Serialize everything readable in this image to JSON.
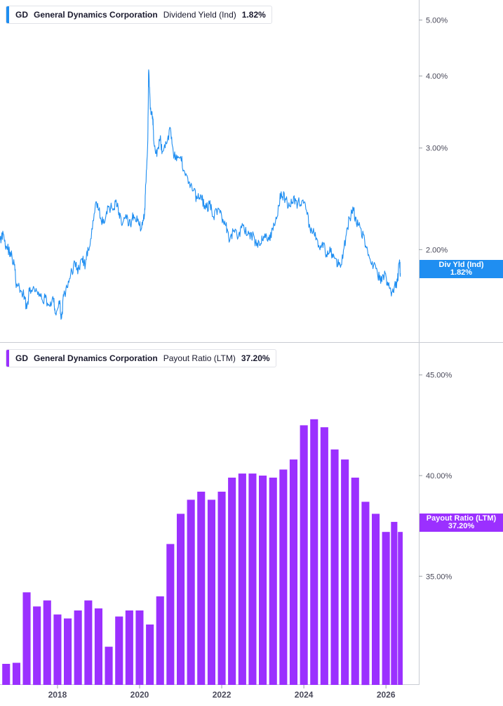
{
  "legends": [
    {
      "ticker": "GD",
      "company": "General Dynamics Corporation",
      "metric": "Dividend Yield (Ind)",
      "value": "1.82%",
      "color": "#1f8ef1"
    },
    {
      "ticker": "GD",
      "company": "General Dynamics Corporation",
      "metric": "Payout Ratio (LTM)",
      "value": "37.20%",
      "color": "#9b30ff"
    }
  ],
  "tags": {
    "yield": {
      "label": "Div Yld (Ind)",
      "value": "1.82%",
      "color": "#1f8ef1"
    },
    "payout": {
      "label": "Payout Ratio (LTM)",
      "value": "37.20%",
      "color": "#9b30ff"
    }
  },
  "chart_data": [
    {
      "type": "line",
      "title": "GD General Dynamics Corporation Dividend Yield (Ind) 1.82%",
      "series_name": "Dividend Yield (Ind)",
      "scale": "log",
      "yticks": [
        2.0,
        3.0,
        4.0,
        5.0
      ],
      "ytick_labels": [
        "2.00%",
        "3.00%",
        "4.00%",
        "5.00%"
      ],
      "ylim": [
        1.45,
        5.15
      ],
      "xlim": [
        2016.6,
        2026.8
      ],
      "color": "#1f8ef1",
      "points": [
        [
          2016.6,
          2.08
        ],
        [
          2016.68,
          2.13
        ],
        [
          2016.75,
          2.03
        ],
        [
          2016.85,
          1.98
        ],
        [
          2016.95,
          1.88
        ],
        [
          2017.0,
          1.73
        ],
        [
          2017.1,
          1.7
        ],
        [
          2017.2,
          1.66
        ],
        [
          2017.25,
          1.58
        ],
        [
          2017.33,
          1.72
        ],
        [
          2017.45,
          1.69
        ],
        [
          2017.55,
          1.66
        ],
        [
          2017.62,
          1.64
        ],
        [
          2017.7,
          1.65
        ],
        [
          2017.8,
          1.6
        ],
        [
          2017.9,
          1.64
        ],
        [
          2017.95,
          1.55
        ],
        [
          2018.05,
          1.61
        ],
        [
          2018.1,
          1.52
        ],
        [
          2018.15,
          1.66
        ],
        [
          2018.25,
          1.72
        ],
        [
          2018.35,
          1.84
        ],
        [
          2018.45,
          1.9
        ],
        [
          2018.5,
          1.83
        ],
        [
          2018.6,
          1.93
        ],
        [
          2018.68,
          1.88
        ],
        [
          2018.75,
          2.0
        ],
        [
          2018.85,
          2.17
        ],
        [
          2018.95,
          2.42
        ],
        [
          2019.05,
          2.27
        ],
        [
          2019.15,
          2.23
        ],
        [
          2019.25,
          2.38
        ],
        [
          2019.35,
          2.34
        ],
        [
          2019.42,
          2.44
        ],
        [
          2019.5,
          2.32
        ],
        [
          2019.58,
          2.21
        ],
        [
          2019.68,
          2.26
        ],
        [
          2019.78,
          2.2
        ],
        [
          2019.85,
          2.3
        ],
        [
          2019.95,
          2.24
        ],
        [
          2020.05,
          2.18
        ],
        [
          2020.12,
          2.3
        ],
        [
          2020.15,
          2.6
        ],
        [
          2020.2,
          3.1
        ],
        [
          2020.22,
          4.1
        ],
        [
          2020.26,
          3.5
        ],
        [
          2020.32,
          3.4
        ],
        [
          2020.35,
          3.05
        ],
        [
          2020.42,
          2.9
        ],
        [
          2020.5,
          3.12
        ],
        [
          2020.55,
          2.95
        ],
        [
          2020.65,
          3.05
        ],
        [
          2020.75,
          3.25
        ],
        [
          2020.82,
          2.95
        ],
        [
          2020.9,
          2.85
        ],
        [
          2021.0,
          2.9
        ],
        [
          2021.1,
          2.72
        ],
        [
          2021.2,
          2.62
        ],
        [
          2021.3,
          2.53
        ],
        [
          2021.4,
          2.45
        ],
        [
          2021.5,
          2.48
        ],
        [
          2021.6,
          2.35
        ],
        [
          2021.7,
          2.4
        ],
        [
          2021.8,
          2.28
        ],
        [
          2021.9,
          2.35
        ],
        [
          2022.0,
          2.28
        ],
        [
          2022.1,
          2.2
        ],
        [
          2022.18,
          2.06
        ],
        [
          2022.3,
          2.16
        ],
        [
          2022.4,
          2.1
        ],
        [
          2022.5,
          2.22
        ],
        [
          2022.62,
          2.12
        ],
        [
          2022.72,
          2.14
        ],
        [
          2022.85,
          2.03
        ],
        [
          2022.95,
          2.05
        ],
        [
          2023.05,
          2.13
        ],
        [
          2023.15,
          2.08
        ],
        [
          2023.25,
          2.16
        ],
        [
          2023.35,
          2.28
        ],
        [
          2023.45,
          2.52
        ],
        [
          2023.55,
          2.45
        ],
        [
          2023.65,
          2.38
        ],
        [
          2023.75,
          2.47
        ],
        [
          2023.85,
          2.4
        ],
        [
          2023.95,
          2.43
        ],
        [
          2024.05,
          2.35
        ],
        [
          2024.15,
          2.18
        ],
        [
          2024.25,
          2.13
        ],
        [
          2024.35,
          2.02
        ],
        [
          2024.45,
          2.06
        ],
        [
          2024.55,
          1.96
        ],
        [
          2024.65,
          1.98
        ],
        [
          2024.75,
          1.93
        ],
        [
          2024.85,
          1.88
        ],
        [
          2024.95,
          1.93
        ],
        [
          2025.05,
          2.18
        ],
        [
          2025.15,
          2.3
        ],
        [
          2025.2,
          2.36
        ],
        [
          2025.28,
          2.22
        ],
        [
          2025.38,
          2.18
        ],
        [
          2025.48,
          2.08
        ],
        [
          2025.58,
          1.96
        ],
        [
          2025.7,
          1.88
        ],
        [
          2025.8,
          1.8
        ],
        [
          2025.9,
          1.76
        ],
        [
          2025.98,
          1.82
        ],
        [
          2026.05,
          1.73
        ],
        [
          2026.12,
          1.69
        ],
        [
          2026.2,
          1.72
        ],
        [
          2026.28,
          1.76
        ],
        [
          2026.33,
          1.92
        ],
        [
          2026.35,
          1.82
        ]
      ]
    },
    {
      "type": "bar",
      "title": "GD General Dynamics Corporation Payout Ratio (LTM) 37.20%",
      "series_name": "Payout Ratio (LTM)",
      "yticks": [
        35,
        40,
        45
      ],
      "ytick_labels": [
        "35.00%",
        "40.00%",
        "45.00%"
      ],
      "ylim": [
        29.6,
        45.2
      ],
      "color": "#9b30ff",
      "xticks": [
        2018,
        2020,
        2022,
        2024,
        2026
      ],
      "xtick_labels": [
        "2018",
        "2020",
        "2022",
        "2024",
        "2026"
      ],
      "xlim": [
        2016.6,
        2026.8
      ],
      "x": [
        2016.75,
        2017.0,
        2017.25,
        2017.5,
        2017.75,
        2018.0,
        2018.25,
        2018.5,
        2018.75,
        2019.0,
        2019.25,
        2019.5,
        2019.75,
        2020.0,
        2020.25,
        2020.5,
        2020.75,
        2021.0,
        2021.25,
        2021.5,
        2021.75,
        2022.0,
        2022.25,
        2022.5,
        2022.75,
        2023.0,
        2023.25,
        2023.5,
        2023.75,
        2024.0,
        2024.25,
        2024.5,
        2024.75,
        2025.0,
        2025.25,
        2025.5,
        2025.75,
        2026.0,
        2026.2,
        2026.35
      ],
      "values": [
        29.6,
        30.7,
        34.2,
        33.5,
        33.8,
        33.1,
        32.9,
        33.3,
        33.8,
        33.4,
        31.5,
        33.0,
        33.3,
        33.3,
        32.6,
        34.0,
        36.6,
        38.1,
        38.8,
        39.2,
        38.8,
        39.2,
        39.9,
        40.1,
        40.1,
        40.0,
        39.9,
        40.3,
        40.8,
        42.5,
        42.8,
        42.4,
        41.3,
        40.8,
        39.9,
        38.7,
        38.1,
        37.2,
        37.7,
        37.2
      ]
    }
  ]
}
